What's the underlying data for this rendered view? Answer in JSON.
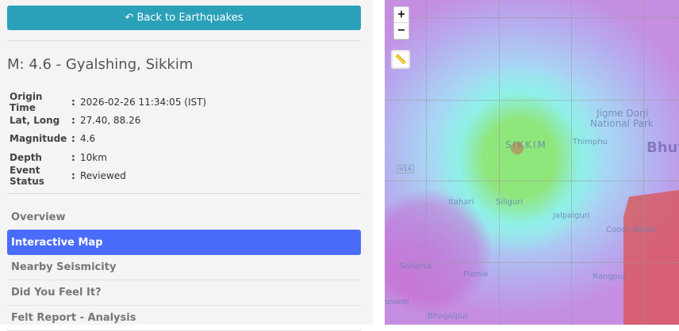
{
  "back_button": {
    "label": "Back to Earthquakes",
    "icon": "reply-icon"
  },
  "event": {
    "title": "M: 4.6 - Gyalshing, Sikkim",
    "fields": [
      {
        "label": "Origin Time",
        "value": "2026-02-26 11:34:05 (IST)"
      },
      {
        "label": "Lat, Long",
        "value": "27.40, 88.26"
      },
      {
        "label": "Magnitude",
        "value": "4.6"
      },
      {
        "label": "Depth",
        "value": "10km"
      },
      {
        "label": "Event Status",
        "value": "Reviewed"
      }
    ]
  },
  "menu": [
    {
      "label": "Overview"
    },
    {
      "label": "Interactive Map",
      "active": true
    },
    {
      "label": "Nearby Seismicity"
    },
    {
      "label": "Did You Feel It?"
    },
    {
      "label": "Felt Report - Analysis"
    }
  ],
  "colon": ":",
  "map": {
    "zoom_in": "+",
    "zoom_out": "−",
    "labels": [
      "Jigme Dorji",
      "National Park",
      "Thimphu",
      "Bhut",
      "SIKKIM",
      "Itahari",
      "Siliguri",
      "Jalpaiguri",
      "Cooch Behar",
      "Saharsa",
      "Purnia",
      "Rangpur",
      "usarai",
      "Bhagalpur",
      "H16"
    ],
    "colors": {
      "active": "#4a6cfb",
      "button": "#2aa1b8"
    }
  }
}
